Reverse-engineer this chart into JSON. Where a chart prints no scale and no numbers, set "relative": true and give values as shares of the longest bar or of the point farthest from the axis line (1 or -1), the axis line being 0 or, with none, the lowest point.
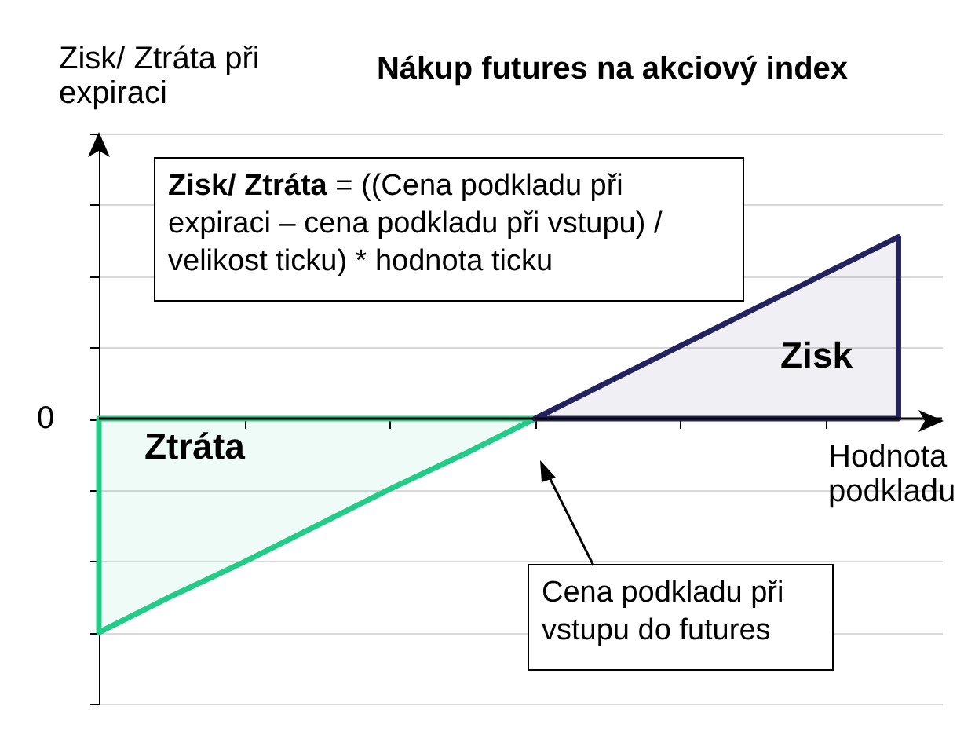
{
  "chart_data": {
    "type": "area",
    "title": "Nákup futures na akciový index",
    "xlabel": "Hodnota podkladu",
    "ylabel": "Zisk/ Ztráta při expiraci",
    "relative": true,
    "categories": [
      null,
      null,
      null,
      null,
      null,
      null,
      null,
      null,
      null,
      null,
      null,
      null
    ],
    "series": [
      {
        "color": "#22cc88",
        "values": [
          -1,
          -0.83,
          -0.67,
          -0.5,
          -0.33,
          -0.17,
          0,
          null,
          null,
          null,
          null,
          null
        ]
      },
      {
        "color": "#24225e",
        "values": [
          null,
          null,
          null,
          null,
          null,
          null,
          0,
          0.17,
          0.34,
          0.51,
          0.68,
          0.85
        ]
      }
    ],
    "ref_lines": [
      {
        "axis": "y",
        "value": 0,
        "label": "0"
      }
    ],
    "grid": "y",
    "annotations": [
      "Zisk/ Ztráta = ((Cena podkladu při expiraci – cena podkladu při vstupu) / velikost ticku) * hodnota ticku",
      "Zisk",
      "Ztráta",
      "Cena podkladu při vstupu do futures"
    ]
  }
}
